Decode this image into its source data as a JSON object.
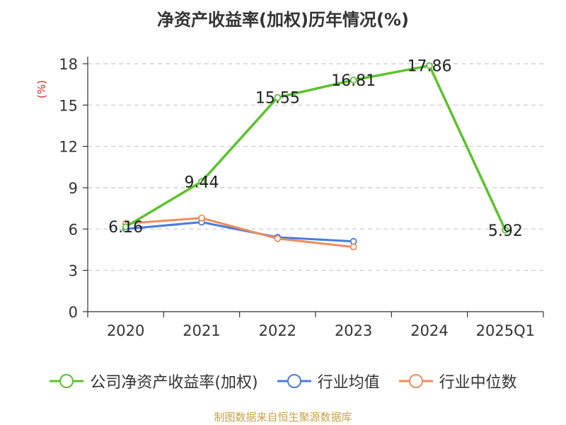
{
  "chart_data": {
    "type": "line",
    "title": "净资产收益率(加权)历年情况(%)",
    "ylabel": "(%)",
    "categories": [
      "2020",
      "2021",
      "2022",
      "2023",
      "2024",
      "2025Q1"
    ],
    "ylim": [
      0,
      18
    ],
    "yticks": [
      "0",
      "3",
      "6",
      "9",
      "12",
      "15",
      "18"
    ],
    "grid": true,
    "legend_position": "bottom",
    "series": [
      {
        "name": "公司净资产收益率(加权)",
        "color": "#5ac32b",
        "values": [
          6.16,
          9.44,
          15.55,
          16.81,
          17.86,
          5.92
        ],
        "labels": [
          "6.16",
          "9.44",
          "15.55",
          "16.81",
          "17.86",
          "5.92"
        ]
      },
      {
        "name": "行业均值",
        "color": "#4a7be0",
        "values": [
          6.0,
          6.5,
          5.4,
          5.1,
          null,
          null
        ]
      },
      {
        "name": "行业中位数",
        "color": "#f08c5a",
        "values": [
          6.4,
          6.8,
          5.3,
          4.7,
          null,
          null
        ]
      }
    ],
    "source": "制图数据来自恒生聚源数据库"
  }
}
